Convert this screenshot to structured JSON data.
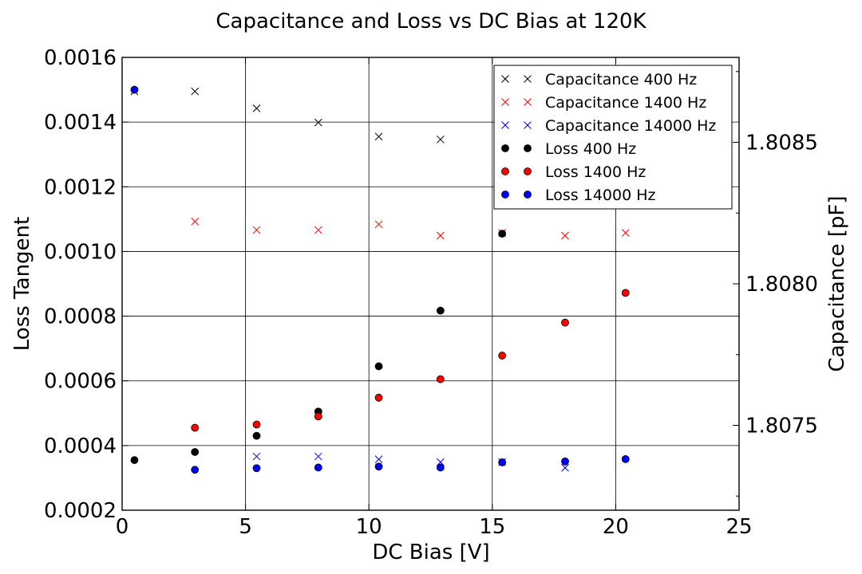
{
  "chart_data": {
    "type": "scatter",
    "title": "Capacitance and Loss vs DC Bias at 120K",
    "xlabel": "DC Bias [V]",
    "ylabel": "Loss Tangent",
    "y2label": "Capacitance [pF]",
    "xlim": [
      0,
      25
    ],
    "ylim": [
      0.0002,
      0.0016
    ],
    "y2lim": [
      1.8072,
      1.8088
    ],
    "x_ticks": [
      "0",
      "5",
      "10",
      "15",
      "20",
      "25"
    ],
    "y_ticks": [
      "0.0002",
      "0.0004",
      "0.0006",
      "0.0008",
      "0.0010",
      "0.0012",
      "0.0014",
      "0.0016"
    ],
    "y2_ticks": [
      "1.8075",
      "1.8080",
      "1.8085"
    ],
    "grid": true,
    "legend_position": "top-right",
    "series": [
      {
        "name": "Capacitance 400 Hz",
        "axis": "right",
        "marker": "x",
        "color": "#000000",
        "x": [
          0.5,
          2.95,
          5.45,
          7.95,
          10.4,
          12.9
        ],
        "y": [
          1.80868,
          1.80868,
          1.80862,
          1.80857,
          1.80852,
          1.80851
        ]
      },
      {
        "name": "Capacitance 1400 Hz",
        "axis": "right",
        "marker": "x",
        "color": "#ff0000",
        "x": [
          2.95,
          5.45,
          7.95,
          10.4,
          12.9,
          15.4,
          17.95,
          20.4
        ],
        "y": [
          1.80822,
          1.80819,
          1.80819,
          1.80821,
          1.80817,
          1.80818,
          1.80817,
          1.80818
        ]
      },
      {
        "name": "Capacitance 14000 Hz",
        "axis": "right",
        "marker": "x",
        "color": "#0000ff",
        "x": [
          5.45,
          7.95,
          10.4,
          12.9,
          15.4,
          17.95
        ],
        "y": [
          1.80739,
          1.80739,
          1.80738,
          1.80737,
          1.80737,
          1.80735
        ]
      },
      {
        "name": "Loss 400 Hz",
        "axis": "left",
        "marker": "o",
        "color": "#000000",
        "x": [
          0.5,
          2.95,
          5.45,
          7.95,
          10.4,
          12.9,
          15.4
        ],
        "y": [
          0.000355,
          0.00038,
          0.00043,
          0.000505,
          0.000645,
          0.000817,
          0.001055
        ]
      },
      {
        "name": "Loss 1400 Hz",
        "axis": "left",
        "marker": "o",
        "color": "#ff0000",
        "x": [
          2.95,
          5.45,
          7.95,
          10.4,
          12.9,
          15.4,
          17.95,
          20.4
        ],
        "y": [
          0.000455,
          0.000465,
          0.00049,
          0.000548,
          0.000605,
          0.000678,
          0.00078,
          0.000872
        ]
      },
      {
        "name": "Loss 14000 Hz",
        "axis": "left",
        "marker": "o",
        "color": "#0000ff",
        "x": [
          0.5,
          2.95,
          5.45,
          7.95,
          10.4,
          12.9,
          15.4,
          17.95,
          20.4
        ],
        "y": [
          0.0015,
          0.000325,
          0.00033,
          0.000332,
          0.000335,
          0.000332,
          0.000348,
          0.000351,
          0.000358
        ]
      }
    ]
  }
}
